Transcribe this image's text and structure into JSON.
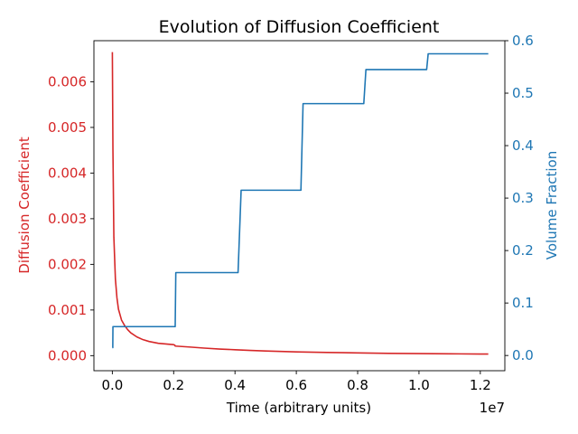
{
  "chart_data": {
    "type": "line",
    "title": "Evolution of Diffusion Coefficient",
    "xlabel": "Time (arbitrary units)",
    "x_offset_label": "1e7",
    "xlim": [
      -0.06,
      1.28
    ],
    "x_ticks": [
      0.0,
      0.2,
      0.4,
      0.6,
      0.8,
      1.0,
      1.2
    ],
    "x_tick_labels": [
      "0.0",
      "0.2",
      "0.4",
      "0.6",
      "0.8",
      "1.0",
      "1.2"
    ],
    "y_left": {
      "label": "Diffusion Coefficient",
      "color": "#d62728",
      "lim": [
        -0.00033,
        0.0069
      ],
      "ticks": [
        0.0,
        0.001,
        0.002,
        0.003,
        0.004,
        0.005,
        0.006
      ],
      "tick_labels": [
        "0.000",
        "0.001",
        "0.002",
        "0.003",
        "0.004",
        "0.005",
        "0.006"
      ]
    },
    "y_right": {
      "label": "Volume Fraction",
      "color": "#1f77b4",
      "lim": [
        -0.029,
        0.6
      ],
      "ticks": [
        0.0,
        0.1,
        0.2,
        0.3,
        0.4,
        0.5,
        0.6
      ],
      "tick_labels": [
        "0.0",
        "0.1",
        "0.2",
        "0.3",
        "0.4",
        "0.5",
        "0.6"
      ]
    },
    "series": [
      {
        "axis": "left",
        "color": "#d62728",
        "x": [
          0.0001,
          0.002,
          0.005,
          0.01,
          0.015,
          0.02,
          0.03,
          0.04,
          0.05,
          0.06,
          0.08,
          0.1,
          0.12,
          0.15,
          0.2,
          0.204,
          0.205,
          0.25,
          0.3,
          0.35,
          0.4,
          0.45,
          0.5,
          0.55,
          0.6,
          0.7,
          0.8,
          0.9,
          1.0,
          1.1,
          1.2,
          1.226
        ],
        "y": [
          0.00665,
          0.0045,
          0.0026,
          0.00168,
          0.00127,
          0.00102,
          0.00078,
          0.00066,
          0.00057,
          0.0005,
          0.00041,
          0.00035,
          0.00031,
          0.00027,
          0.00024,
          0.00023,
          0.00021,
          0.00019,
          0.000165,
          0.000145,
          0.00013,
          0.000115,
          0.000102,
          9.2e-05,
          8.3e-05,
          7e-05,
          6e-05,
          5.1e-05,
          4.5e-05,
          4e-05,
          3.6e-05,
          3.5e-05
        ]
      },
      {
        "axis": "right",
        "color": "#1f77b4",
        "x": [
          0.0001,
          0.0015,
          0.002,
          0.205,
          0.207,
          0.41,
          0.42,
          0.615,
          0.622,
          0.82,
          0.827,
          1.025,
          1.03,
          1.226
        ],
        "y": [
          0.015,
          0.015,
          0.055,
          0.055,
          0.158,
          0.158,
          0.315,
          0.315,
          0.48,
          0.48,
          0.545,
          0.545,
          0.575,
          0.575
        ]
      }
    ]
  }
}
